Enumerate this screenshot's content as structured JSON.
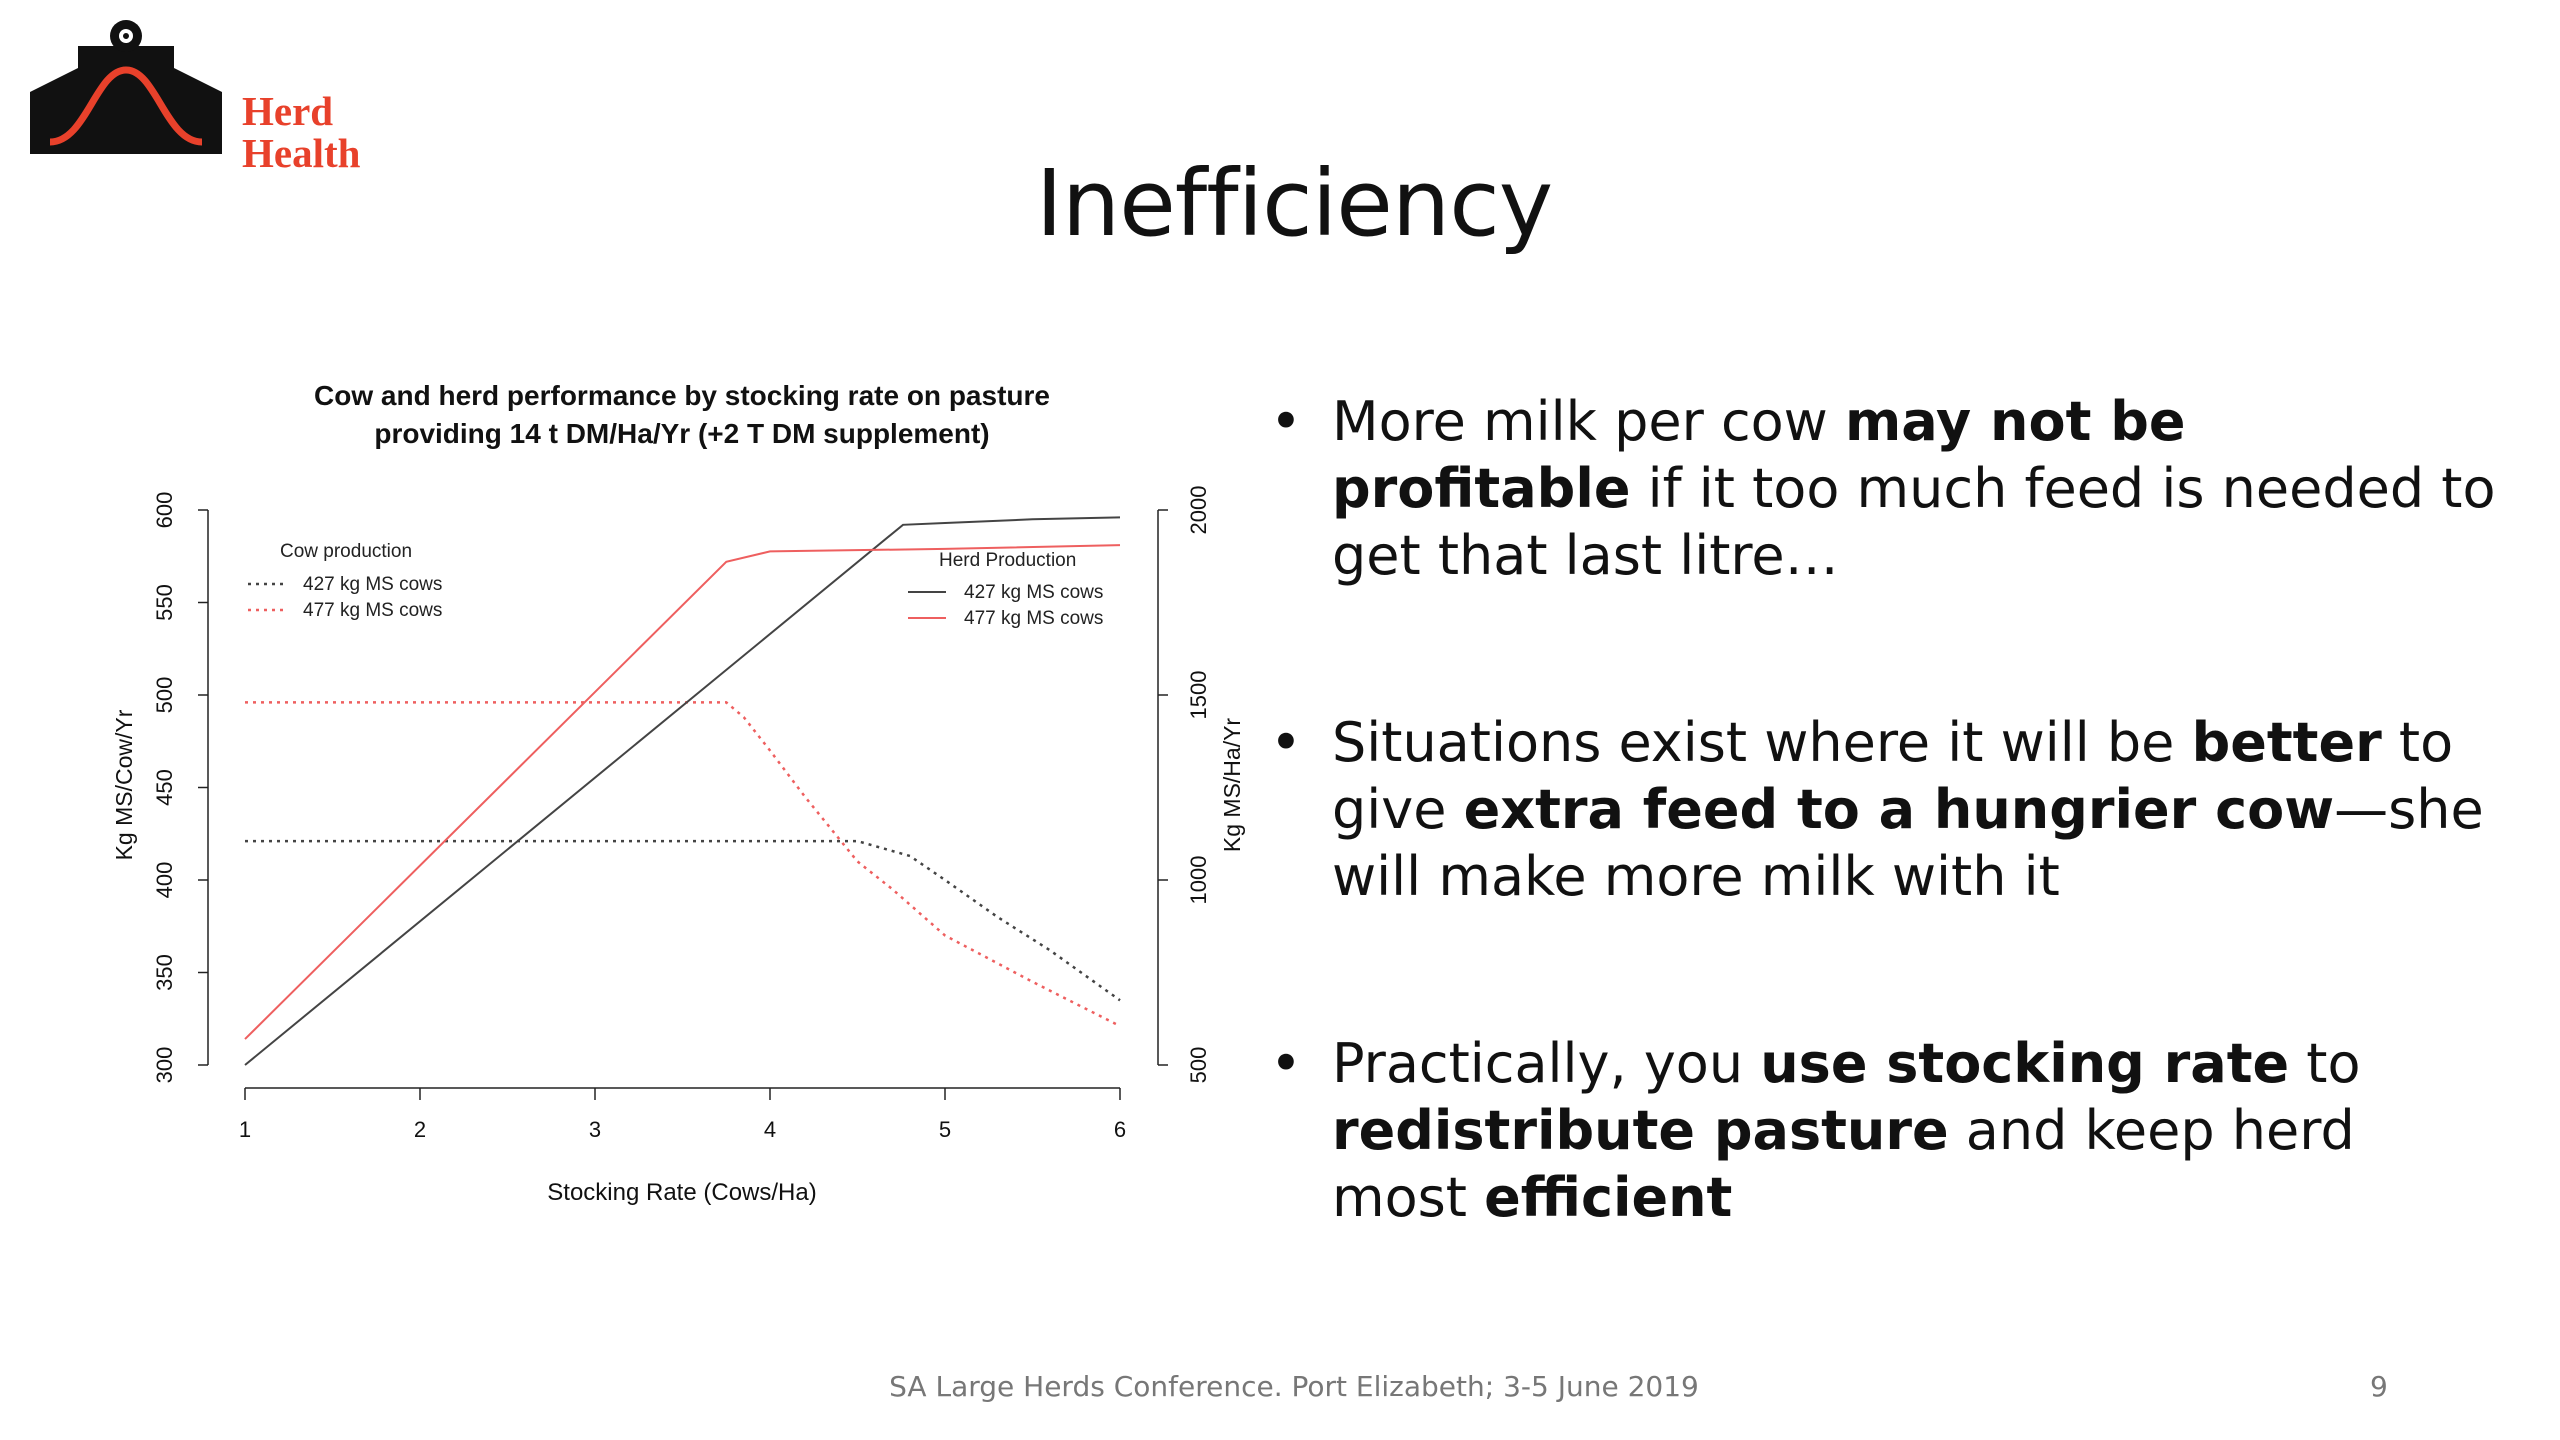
{
  "logo": {
    "line1": "Herd",
    "line2": "Health"
  },
  "slide": {
    "title": "Inefficiency",
    "footer": "SA Large Herds Conference.  Port Elizabeth; 3-5 June 2019",
    "page_number": "9"
  },
  "bullets": [
    {
      "parts": [
        {
          "t": "More milk per cow "
        },
        {
          "t": "may not be profitable",
          "b": true
        },
        {
          "t": " if it too much feed is needed to get that last litre…"
        }
      ]
    },
    {
      "parts": [
        {
          "t": "Situations exist where it will be "
        },
        {
          "t": "better",
          "b": true
        },
        {
          "t": " to give "
        },
        {
          "t": "extra feed to a hungrier cow",
          "b": true
        },
        {
          "t": "—she will make more milk with it"
        }
      ]
    },
    {
      "parts": [
        {
          "t": "Practically, you "
        },
        {
          "t": "use stocking rate",
          "b": true
        },
        {
          "t": " to "
        },
        {
          "t": "redistribute pasture",
          "b": true
        },
        {
          "t": " and keep herd most "
        },
        {
          "t": "efficient",
          "b": true
        }
      ]
    }
  ],
  "chart_data": {
    "type": "line",
    "title": "Cow and herd performance by stocking rate on pasture",
    "title_line2": "providing 14 t DM/Ha/Yr (+2 T DM supplement)",
    "xlabel": "Stocking Rate (Cows/Ha)",
    "ylabel_left": "Kg MS/Cow/Yr",
    "ylabel_right": "Kg MS/Ha/Yr",
    "xlim": [
      1,
      6
    ],
    "ylim_left": [
      300,
      600
    ],
    "ylim_right": [
      500,
      2000
    ],
    "x_ticks": [
      "1",
      "2",
      "3",
      "4",
      "5",
      "6"
    ],
    "y_left_ticks": [
      "300",
      "350",
      "400",
      "450",
      "500",
      "550",
      "600"
    ],
    "y_right_ticks": [
      "500",
      "1000",
      "1500",
      "2000"
    ],
    "grid": false,
    "legend_left": {
      "title": "Cow production",
      "placement": "top-left",
      "entries": [
        "427 kg MS cows",
        "477 kg MS cows"
      ]
    },
    "legend_right": {
      "title": "Herd Production",
      "placement": "top-right",
      "entries": [
        "427 kg MS cows",
        "477 kg MS cows"
      ]
    },
    "colors": {
      "427": "#444444",
      "477": "#ee5f5f"
    },
    "series": [
      {
        "name": "427 kg MS cows",
        "group": "cow",
        "axis": "left",
        "style": "dotted",
        "color": "#444444",
        "x": [
          1,
          2,
          3,
          4,
          4.5,
          4.8,
          5.0,
          5.3,
          5.6,
          6.0
        ],
        "y": [
          421,
          421,
          421,
          421,
          421,
          413,
          400,
          380,
          362,
          335
        ]
      },
      {
        "name": "477 kg MS cows",
        "group": "cow",
        "axis": "left",
        "style": "dotted",
        "color": "#ee5f5f",
        "x": [
          1,
          2,
          3,
          3.75,
          3.85,
          4.0,
          4.2,
          4.5,
          4.7,
          5.0,
          5.5,
          6.0
        ],
        "y": [
          496,
          496,
          496,
          496,
          488,
          470,
          445,
          410,
          395,
          370,
          345,
          321
        ]
      },
      {
        "name": "427 kg MS cows",
        "group": "herd",
        "axis": "right",
        "style": "solid",
        "color": "#444444",
        "x": [
          1,
          4.76,
          5.0,
          5.5,
          6.0
        ],
        "y": [
          500,
          1960,
          1965,
          1975,
          1980
        ]
      },
      {
        "name": "477 kg MS cows",
        "group": "herd",
        "axis": "right",
        "style": "solid",
        "color": "#ee5f5f",
        "x": [
          1,
          3.75,
          4.0,
          5.0,
          6.0
        ],
        "y": [
          570,
          1860,
          1888,
          1895,
          1905
        ]
      }
    ]
  }
}
